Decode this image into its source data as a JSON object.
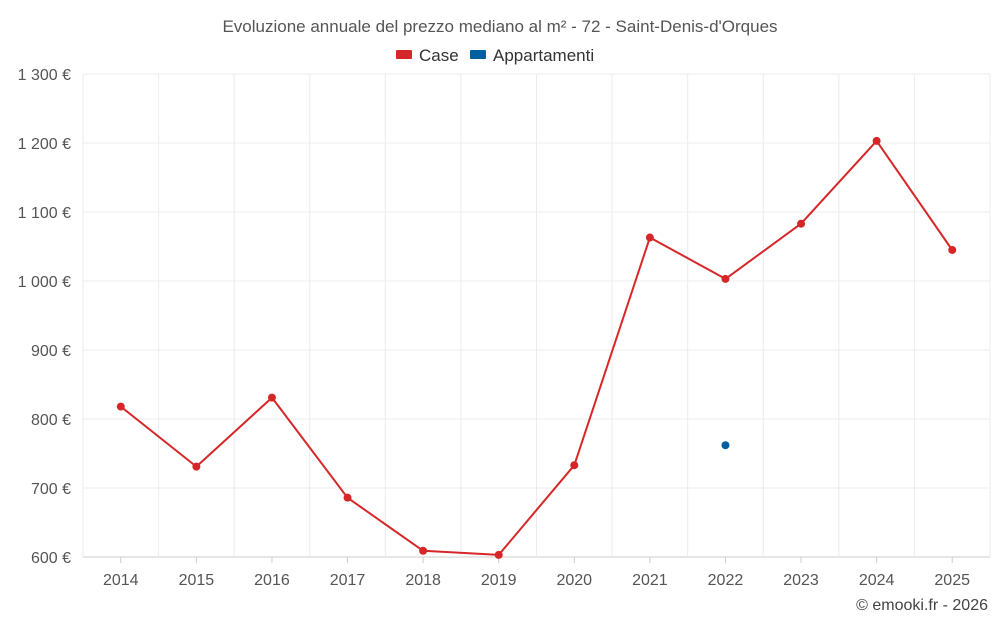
{
  "chart_data": {
    "type": "line",
    "title": "Evoluzione annuale del prezzo mediano al m² - 72 - Saint-Denis-d'Orques",
    "categories": [
      "2014",
      "2015",
      "2016",
      "2017",
      "2018",
      "2019",
      "2020",
      "2021",
      "2022",
      "2023",
      "2024",
      "2025"
    ],
    "series": [
      {
        "name": "Case",
        "color": "#d62728",
        "values": [
          818,
          731,
          831,
          686,
          609,
          603,
          733,
          1063,
          1003,
          1083,
          1203,
          1045
        ]
      },
      {
        "name": "Appartamenti",
        "color": "#005f9e",
        "values": [
          null,
          null,
          null,
          null,
          null,
          null,
          null,
          null,
          762,
          null,
          null,
          null
        ]
      }
    ],
    "ylim": [
      600,
      1300
    ],
    "y_ticks": [
      600,
      700,
      800,
      900,
      1000,
      1100,
      1200,
      1300
    ],
    "y_tick_labels": [
      "600 €",
      "700 €",
      "800 €",
      "900 €",
      "1 000 €",
      "1 100 €",
      "1 200 €",
      "1 300 €"
    ],
    "xlabel": "",
    "ylabel": "",
    "grid": true,
    "legend_position": "top-center",
    "credit": "© emooki.fr - 2026"
  }
}
